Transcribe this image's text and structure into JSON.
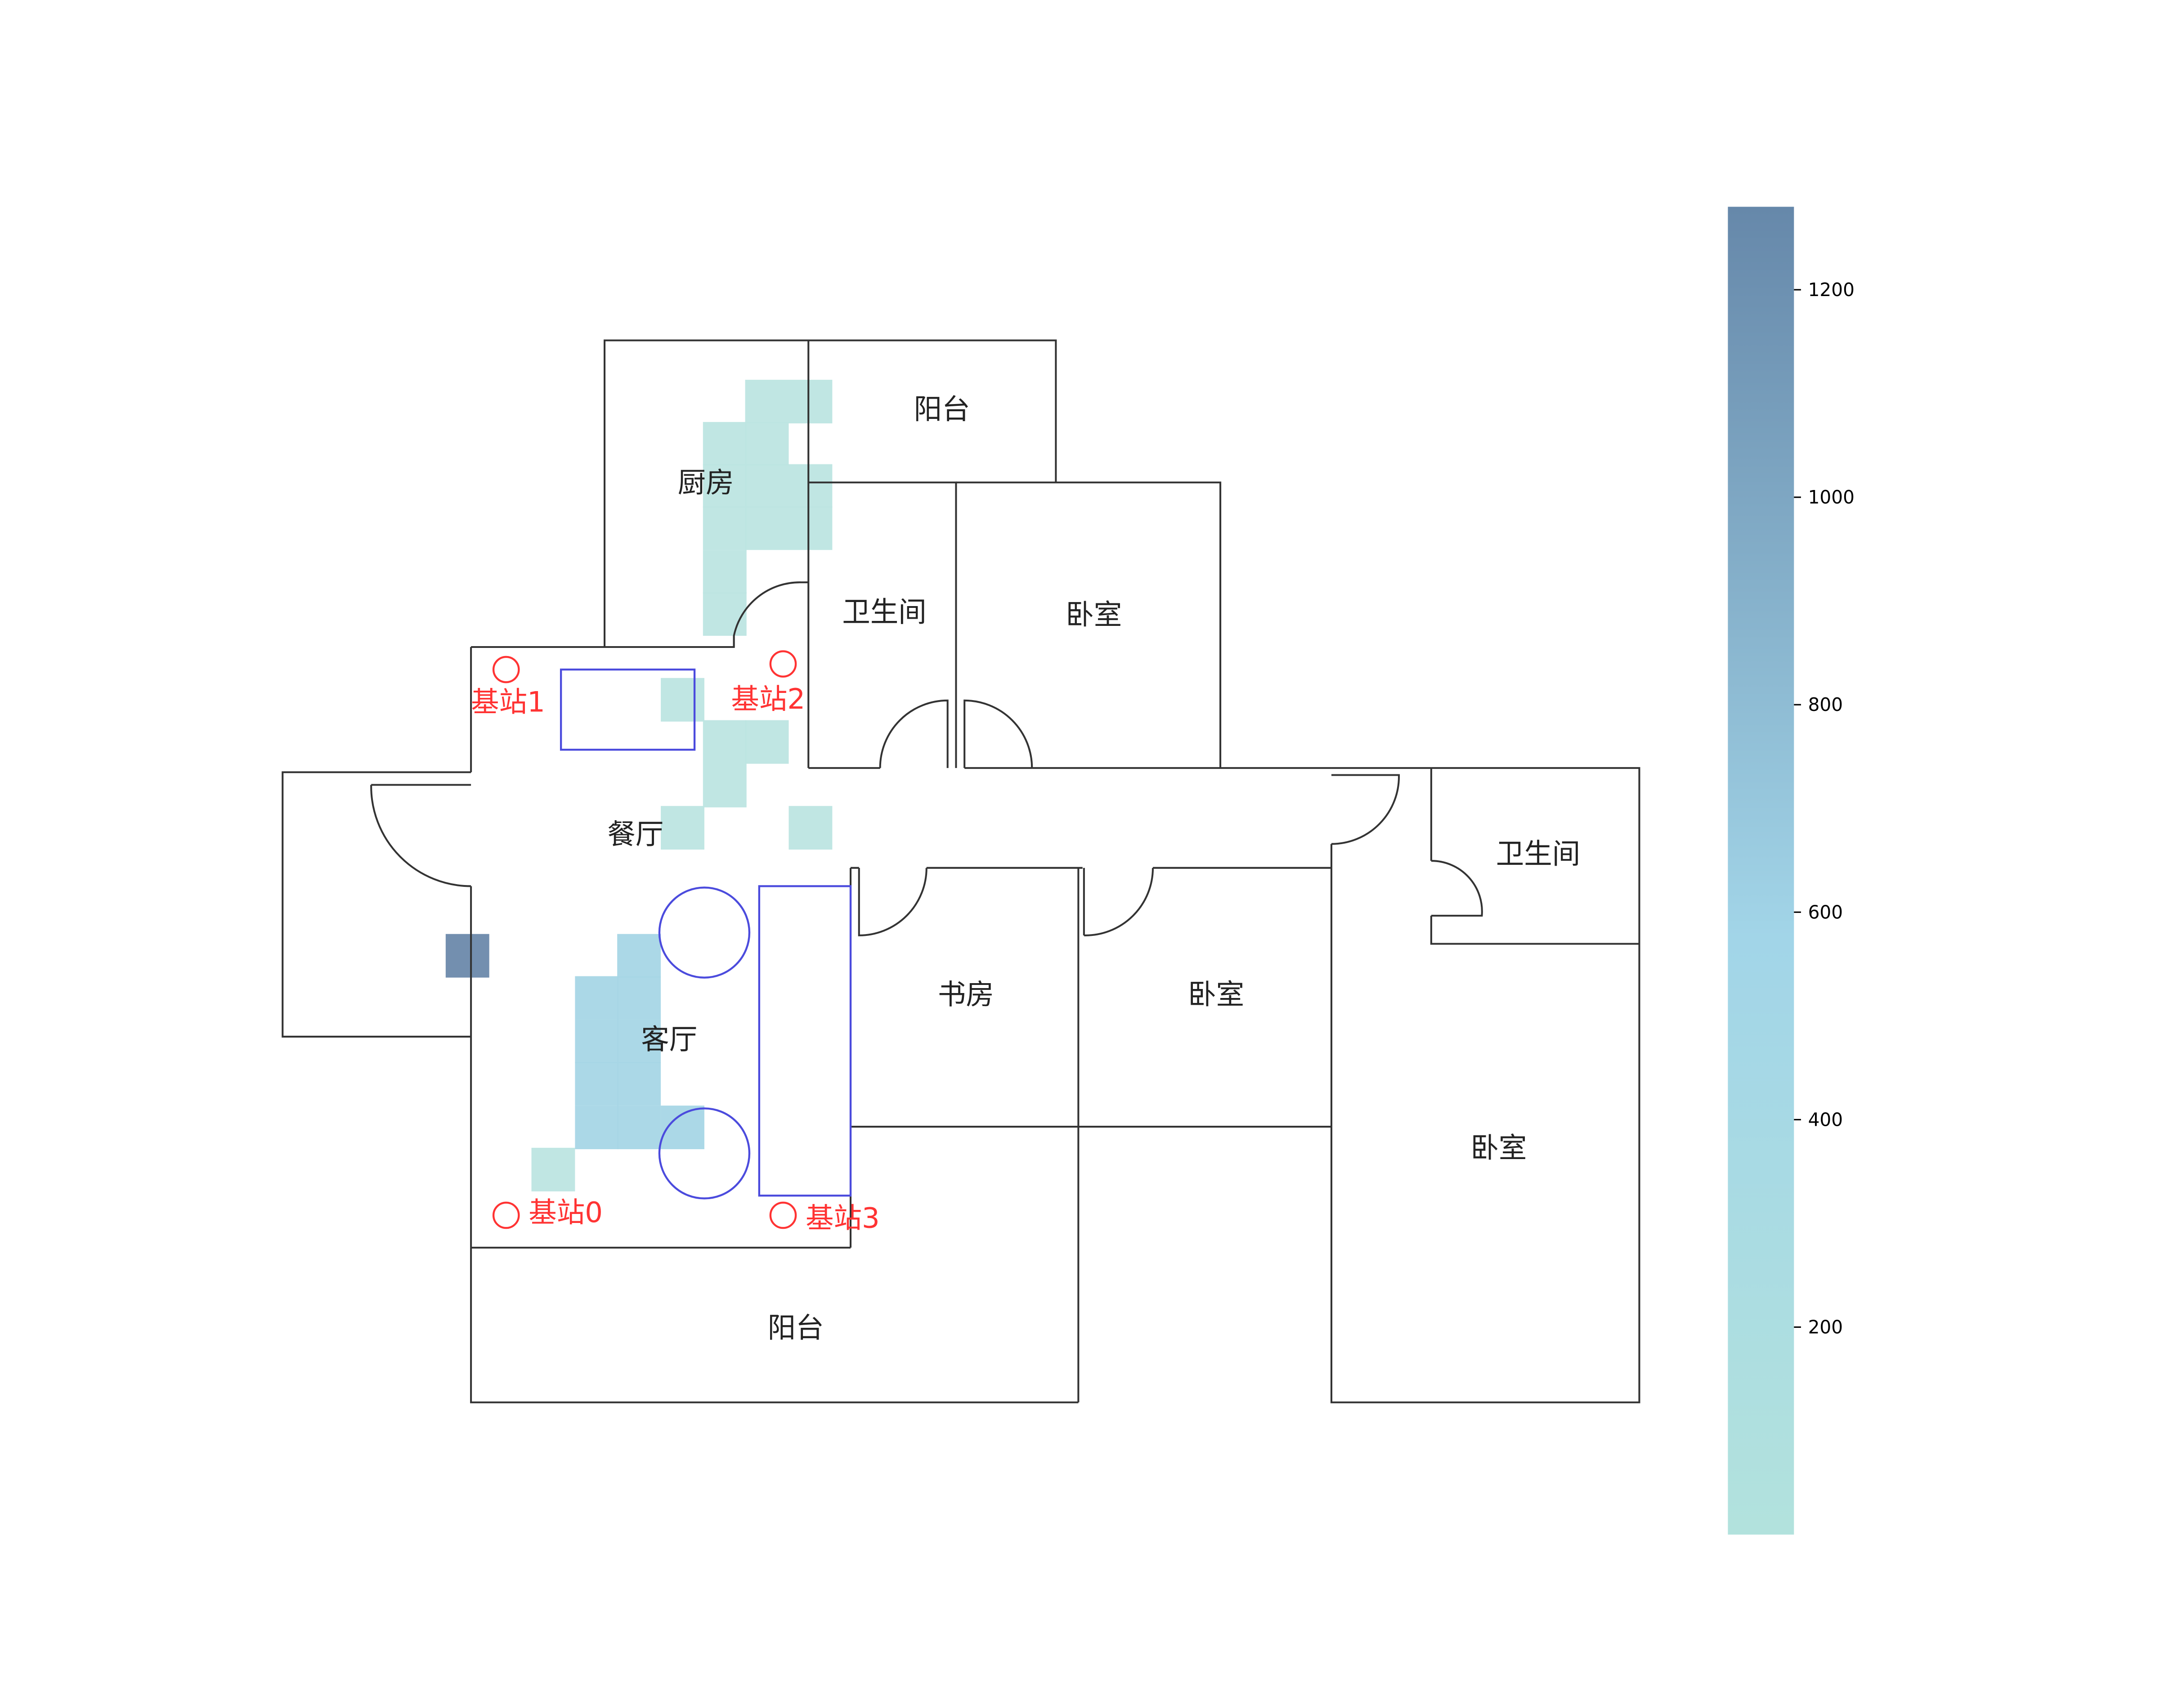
{
  "rooms": [
    {
      "id": "kitchen",
      "label": "厨房"
    },
    {
      "id": "balcony-north",
      "label": "阳台"
    },
    {
      "id": "bathroom-1",
      "label": "卫生间"
    },
    {
      "id": "bedroom-1",
      "label": "卧室"
    },
    {
      "id": "dining",
      "label": "餐厅"
    },
    {
      "id": "living",
      "label": "客厅"
    },
    {
      "id": "study",
      "label": "书房"
    },
    {
      "id": "bedroom-2",
      "label": "卧室"
    },
    {
      "id": "bathroom-2",
      "label": "卫生间"
    },
    {
      "id": "bedroom-3",
      "label": "卧室"
    },
    {
      "id": "balcony-south",
      "label": "阳台"
    }
  ],
  "stations": [
    {
      "id": "0",
      "label": "基站0"
    },
    {
      "id": "1",
      "label": "基站1"
    },
    {
      "id": "2",
      "label": "基站2"
    },
    {
      "id": "3",
      "label": "基站3"
    }
  ],
  "colorbar": {
    "min": 0,
    "max": 1280,
    "ticks": [
      200,
      400,
      600,
      800,
      1000,
      1200
    ],
    "color_low": "#b2e2dd",
    "color_mid": "#a2d5e8",
    "color_high": "#6688aa"
  },
  "heatmap": {
    "cell_color_light": "#bde5e2",
    "cell_color_mid": "#a6d6e6",
    "cell_color_dark": "#6b89ab"
  },
  "colors": {
    "wall": "#333333",
    "furniture": "#4b4bdd",
    "station": "#ff3333"
  }
}
